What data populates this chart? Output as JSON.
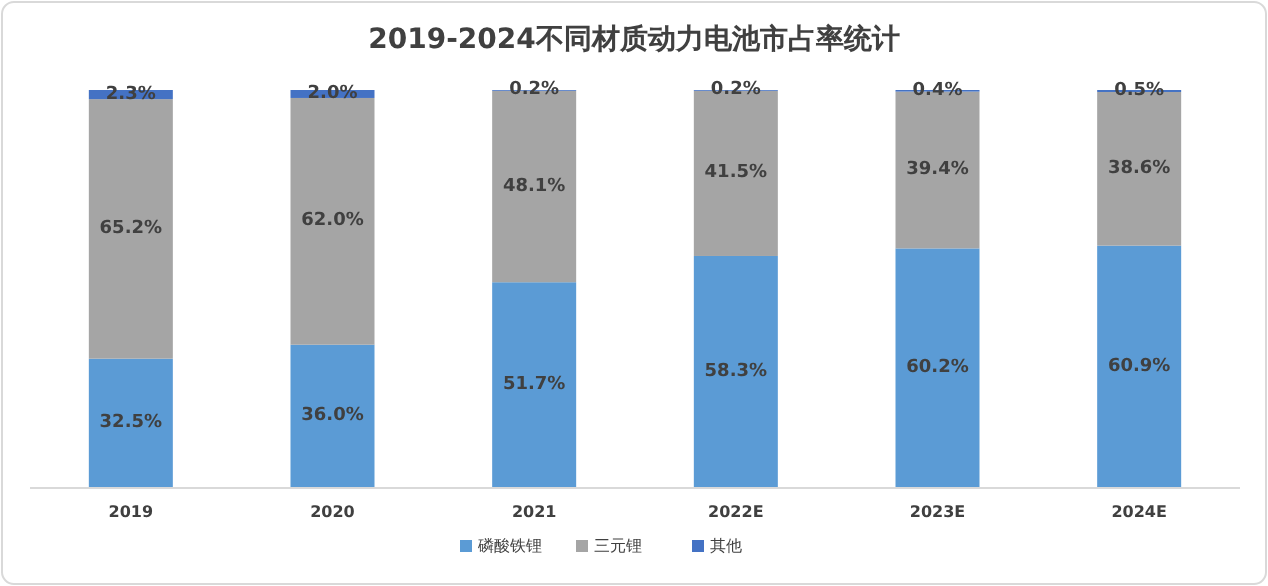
{
  "chart_data": {
    "type": "bar",
    "stacked": true,
    "title": "2019-2024不同材质动力电池市占率统计",
    "categories": [
      "2019",
      "2020",
      "2021",
      "2022E",
      "2023E",
      "2024E"
    ],
    "legend": "bottom",
    "series": [
      {
        "name": "磷酸铁锂",
        "color": "#5b9bd5",
        "values": [
          32.5,
          36.0,
          51.7,
          58.3,
          60.2,
          60.9
        ],
        "value_labels": [
          "32.5%",
          "36.0%",
          "51.7%",
          "58.3%",
          "60.2%",
          "60.9%"
        ]
      },
      {
        "name": "三元锂",
        "color": "#a5a5a5",
        "values": [
          65.2,
          62.0,
          48.1,
          41.5,
          39.4,
          38.6
        ],
        "value_labels": [
          "65.2%",
          "62.0%",
          "48.1%",
          "41.5%",
          "39.4%",
          "38.6%"
        ]
      },
      {
        "name": "其他",
        "color": "#4472c4",
        "values": [
          2.3,
          2.0,
          0.2,
          0.2,
          0.4,
          0.5
        ],
        "value_labels": [
          "2.3%",
          "2.0%",
          "0.2%",
          "0.2%",
          "0.4%",
          "0.5%"
        ]
      }
    ]
  }
}
